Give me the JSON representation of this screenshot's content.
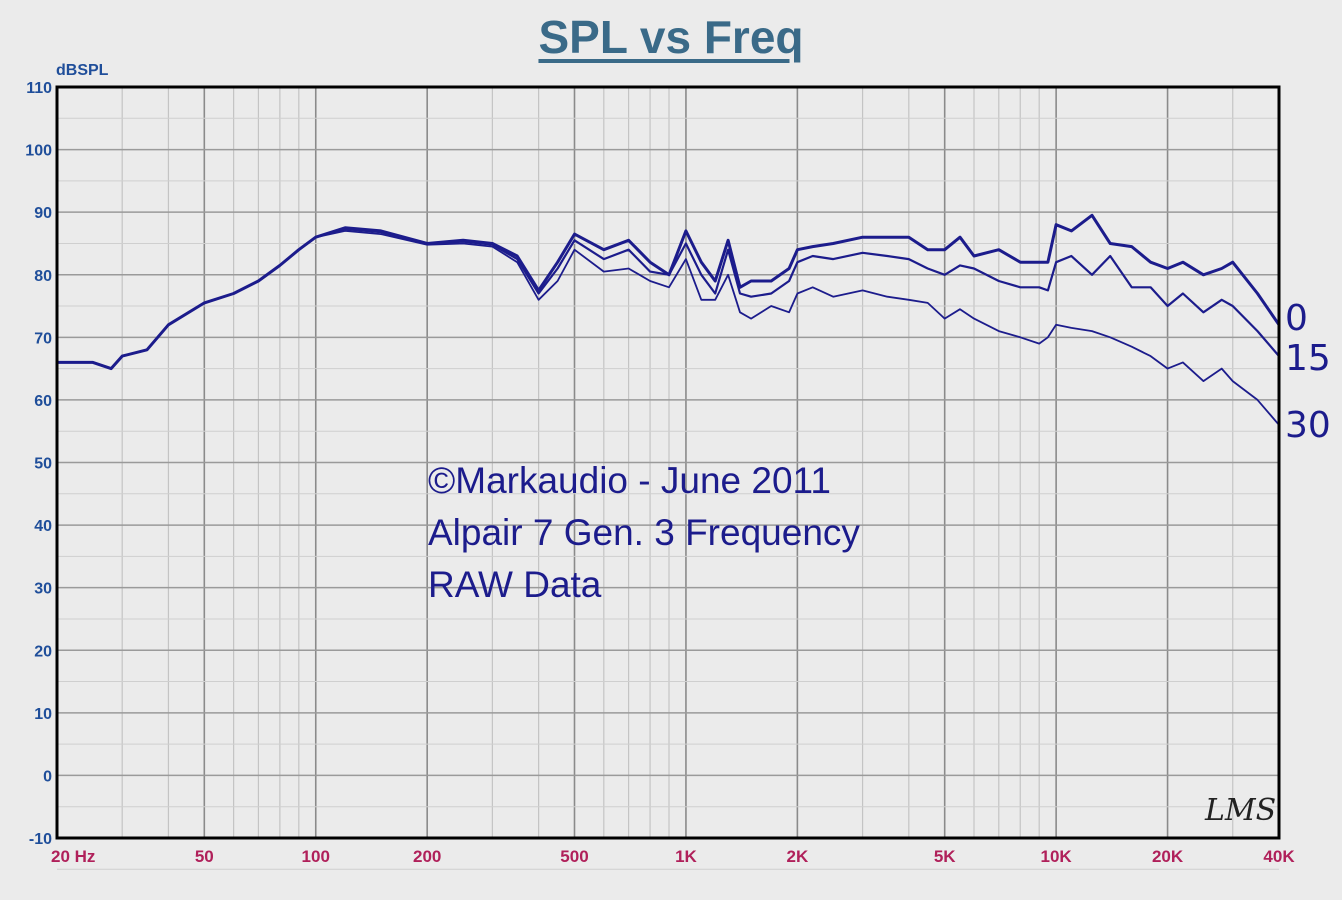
{
  "chart_data": {
    "type": "line",
    "title": "SPL vs Freq",
    "ylabel": "dBSPL",
    "xlabel": "Hz",
    "xscale": "log",
    "xlim": [
      20,
      40000
    ],
    "ylim": [
      -10,
      110
    ],
    "grid": true,
    "yticks": [
      "110",
      "100",
      "90",
      "80",
      "70",
      "60",
      "50",
      "40",
      "30",
      "20",
      "10",
      "0",
      "-10"
    ],
    "ytick_values": [
      110,
      100,
      90,
      80,
      70,
      60,
      50,
      40,
      30,
      20,
      10,
      0,
      -10
    ],
    "xticks": [
      "20 Hz",
      "50",
      "100",
      "200",
      "500",
      "1K",
      "2K",
      "5K",
      "10K",
      "20K",
      "40K"
    ],
    "xtick_values": [
      20,
      50,
      100,
      200,
      500,
      1000,
      2000,
      5000,
      10000,
      20000,
      40000
    ],
    "x": [
      20,
      25,
      28,
      30,
      35,
      40,
      50,
      60,
      70,
      80,
      90,
      100,
      120,
      150,
      200,
      250,
      300,
      350,
      400,
      450,
      500,
      600,
      700,
      800,
      900,
      1000,
      1100,
      1200,
      1300,
      1400,
      1500,
      1700,
      1900,
      2000,
      2200,
      2500,
      3000,
      3500,
      4000,
      4500,
      5000,
      5500,
      6000,
      7000,
      8000,
      9000,
      9500,
      10000,
      11000,
      12500,
      14000,
      16000,
      18000,
      20000,
      22000,
      25000,
      28000,
      30000,
      35000,
      40000
    ],
    "series": [
      {
        "name": "0",
        "values": [
          66,
          66,
          65,
          67,
          68,
          72,
          75.5,
          77,
          79,
          81.5,
          84,
          86,
          87.5,
          87,
          85,
          85.5,
          85,
          83,
          77.5,
          82,
          86.5,
          84,
          85.5,
          82,
          80,
          87,
          82,
          79,
          85.5,
          78,
          79,
          79,
          81,
          84,
          84.5,
          85,
          86,
          86,
          86,
          84,
          84,
          86,
          83,
          84,
          82,
          82,
          82,
          88,
          87,
          89.5,
          85,
          84.5,
          82,
          81,
          82,
          80,
          81,
          82,
          77,
          72
        ]
      },
      {
        "name": "15",
        "values": [
          66,
          66,
          65,
          67,
          68,
          72,
          75.5,
          77,
          79,
          81.5,
          84,
          86,
          87.3,
          86.8,
          85,
          85.3,
          84.8,
          82.5,
          77,
          81,
          85.5,
          82.5,
          84,
          80.5,
          80,
          85,
          80,
          77,
          84,
          77,
          76.5,
          77,
          79,
          82,
          83,
          82.5,
          83.5,
          83,
          82.5,
          81,
          80,
          81.5,
          81,
          79,
          78,
          78,
          77.5,
          82,
          83,
          80,
          83,
          78,
          78,
          75,
          77,
          74,
          76,
          75,
          71,
          67
        ]
      },
      {
        "name": "30",
        "values": [
          66,
          66,
          65,
          67,
          68,
          72,
          75.5,
          77,
          79,
          81.5,
          84,
          86,
          87,
          86.5,
          84.8,
          85,
          84.5,
          82,
          76,
          79,
          84,
          80.5,
          81,
          79,
          78,
          82.5,
          76,
          76,
          80,
          74,
          73,
          75,
          74,
          77,
          78,
          76.5,
          77.5,
          76.5,
          76,
          75.5,
          73,
          74.5,
          73,
          71,
          70,
          69,
          70,
          72,
          71.5,
          71,
          70,
          68.5,
          67,
          65,
          66,
          63,
          65,
          63,
          60,
          56
        ]
      }
    ],
    "annotations": [
      "©Markaudio - June 2011",
      "Alpair 7 Gen. 3 Frequency",
      "RAW Data"
    ],
    "logo": "LMS",
    "color": "#1c1c8c"
  }
}
